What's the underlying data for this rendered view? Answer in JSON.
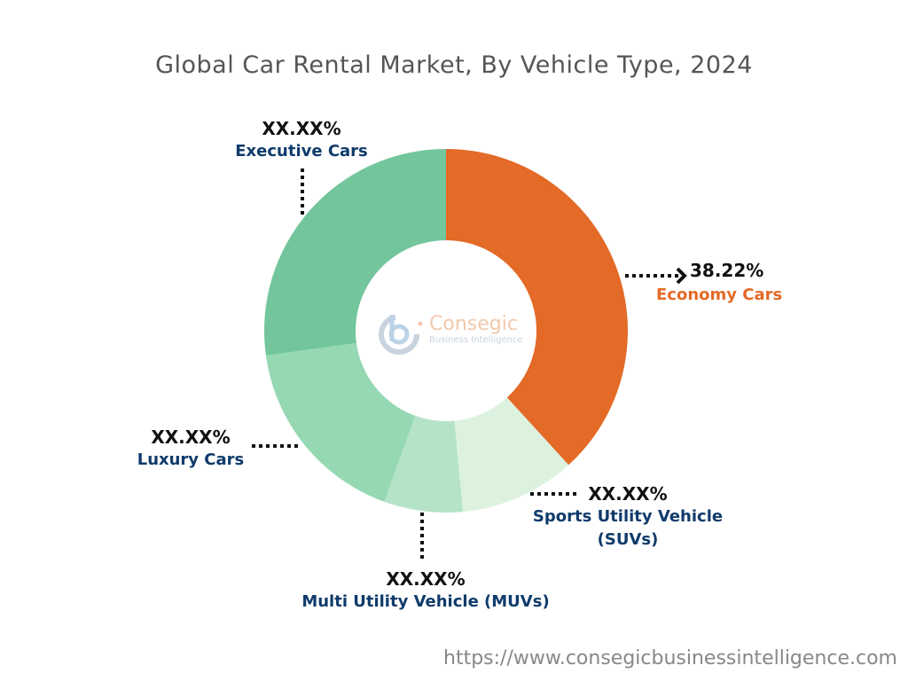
{
  "chart_data": {
    "type": "pie",
    "style": "donut",
    "title": "Global Car Rental Market, By Vehicle Type, 2024",
    "legend": "none",
    "categories": [
      "Economy Cars",
      "Sports Utility Vehicle (SUVs)",
      "Multi Utility Vehicle (MUVs)",
      "Luxury Cars",
      "Executive Cars"
    ],
    "values": [
      38.22,
      10.3,
      7.0,
      17.3,
      27.18
    ],
    "data_labels": [
      "38.22%",
      "XX.XX%",
      "XX.XX%",
      "XX.XX%",
      "XX.XX%"
    ],
    "colors": [
      "#e36a27",
      "#dcf2df",
      "#b5e3c8",
      "#95d8b2",
      "#73c69c"
    ],
    "label_colors": [
      "#e36a27",
      "#0f3b6b",
      "#0f3b6b",
      "#0f3b6b",
      "#0f3b6b"
    ]
  },
  "logo": {
    "name": "Consegic",
    "tagline": "Business Intelligence"
  },
  "footer": {
    "url": "https://www.consegicbusinessintelligence.com"
  }
}
